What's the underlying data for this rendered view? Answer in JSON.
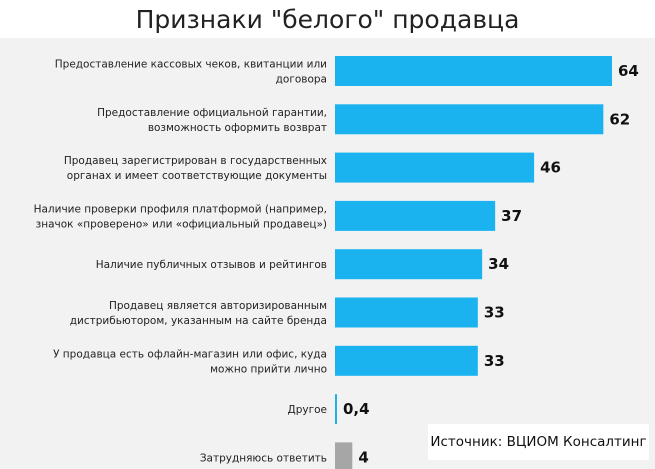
{
  "chart_data": {
    "type": "bar",
    "orientation": "horizontal",
    "title": "Признаки \"белого\" продавца",
    "categories": [
      [
        "Предоставление кассовых чеков, квитанции или",
        "договора"
      ],
      [
        "Предоставление официальной гарантии,",
        "возможность оформить возврат"
      ],
      [
        "Продавец зарегистрирован в государственных",
        "органах и имеет соответствующие документы"
      ],
      [
        "Наличие проверки профиля платформой (например,",
        "значок «проверено» или «официальный продавец»)"
      ],
      [
        "Наличие публичных отзывов и рейтингов"
      ],
      [
        "Продавец является авторизированным",
        "дистрибьютором, указанным на сайте бренда"
      ],
      [
        "У продавца есть офлайн-магазин или офис, куда",
        "можно прийти лично"
      ],
      [
        "Другое"
      ],
      [
        "Затрудняюсь ответить"
      ]
    ],
    "values": [
      64,
      62,
      46,
      37,
      34,
      33,
      33,
      0.4,
      4
    ],
    "value_labels": [
      "64",
      "62",
      "46",
      "37",
      "34",
      "33",
      "33",
      "0,4",
      "4"
    ],
    "bar_colors": [
      "#1ab3ef",
      "#1ab3ef",
      "#1ab3ef",
      "#1ab3ef",
      "#1ab3ef",
      "#1ab3ef",
      "#1ab3ef",
      "#1ab3ef",
      "#a6a6a6"
    ],
    "xlim": [
      0,
      64
    ],
    "grid": false,
    "legend": "none"
  },
  "source_text": "Источник: ВЦИОМ Консалтинг"
}
